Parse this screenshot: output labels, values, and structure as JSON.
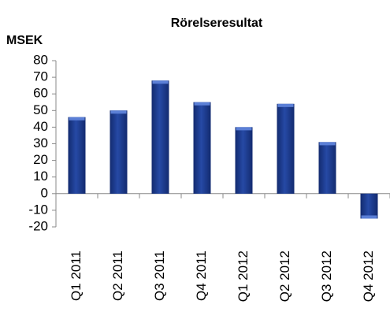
{
  "chart_data": {
    "type": "bar",
    "title": "Rörelseresultat",
    "y_label": "MSEK",
    "categories": [
      "Q1 2011",
      "Q2 2011",
      "Q3 2011",
      "Q4 2011",
      "Q1 2012",
      "Q2 2012",
      "Q3 2012",
      "Q4 2012"
    ],
    "values": [
      46,
      50,
      68,
      55,
      40,
      54,
      31,
      -15
    ],
    "color": "#1c3a8c",
    "ylim": [
      -20,
      80
    ],
    "yticks": [
      -20,
      -10,
      0,
      10,
      20,
      30,
      40,
      50,
      60,
      70,
      80
    ],
    "grid": false
  }
}
